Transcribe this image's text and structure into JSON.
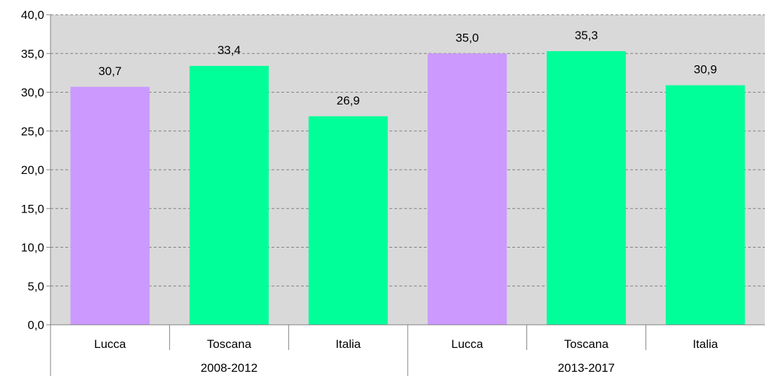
{
  "chart_data": {
    "type": "bar",
    "title": "",
    "xlabel": "",
    "ylabel": "",
    "ylim": [
      0,
      40
    ],
    "yticks": [
      "0,0",
      "5,0",
      "10,0",
      "15,0",
      "20,0",
      "25,0",
      "30,0",
      "35,0",
      "40,0"
    ],
    "ytick_values": [
      0,
      5,
      10,
      15,
      20,
      25,
      30,
      35,
      40
    ],
    "grid": true,
    "legend": "none",
    "groups": [
      {
        "label": "2008-2012",
        "bars": [
          {
            "category": "Lucca",
            "value": 30.7,
            "value_label": "30,7",
            "color": "#cc99ff"
          },
          {
            "category": "Toscana",
            "value": 33.4,
            "value_label": "33,4",
            "color": "#00ff99"
          },
          {
            "category": "Italia",
            "value": 26.9,
            "value_label": "26,9",
            "color": "#00ff99"
          }
        ]
      },
      {
        "label": "2013-2017",
        "bars": [
          {
            "category": "Lucca",
            "value": 35.0,
            "value_label": "35,0",
            "color": "#cc99ff"
          },
          {
            "category": "Toscana",
            "value": 35.3,
            "value_label": "35,3",
            "color": "#00ff99"
          },
          {
            "category": "Italia",
            "value": 30.9,
            "value_label": "30,9",
            "color": "#00ff99"
          }
        ]
      }
    ],
    "colors": {
      "plot_background": "#d9d9d9",
      "gridline": "#808080",
      "axis": "#808080"
    }
  }
}
